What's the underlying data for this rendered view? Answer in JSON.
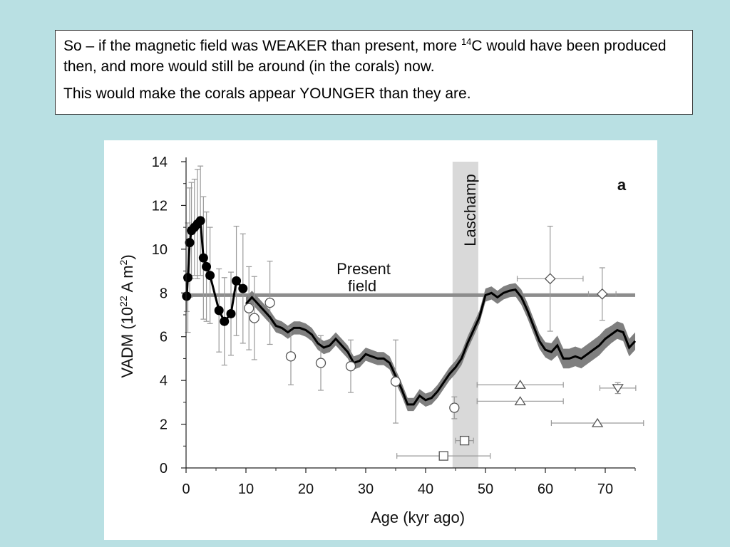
{
  "slide": {
    "line1_pre": "So – if the magnetic field was WEAKER than present, more ",
    "line1_sup": "14",
    "line1_post": "C would have been produced then, and more would still be around (in the corals) now.",
    "line2": "This would make the corals appear YOUNGER than they are."
  },
  "chart_data": {
    "type": "line",
    "panel_label": "a",
    "xlabel": "Age (kyr ago)",
    "ylabel_main": "VADM (10",
    "ylabel_exp1": "22",
    "ylabel_mid": " A m",
    "ylabel_exp2": "2",
    "ylabel_end": ")",
    "xlim": [
      0,
      75
    ],
    "ylim": [
      0,
      14
    ],
    "xticks": [
      "0",
      "10",
      "20",
      "30",
      "40",
      "50",
      "60",
      "70"
    ],
    "yticks": [
      "0",
      "2",
      "4",
      "6",
      "8",
      "10",
      "12",
      "14"
    ],
    "annotations": {
      "present_field_line1": "Present",
      "present_field_line2": "field",
      "laschamp": "Laschamp"
    },
    "present_field_value": 7.9,
    "laschamp_band": [
      44.5,
      48.8
    ],
    "composite_curve": {
      "x": [
        10,
        11,
        12,
        13,
        14,
        15,
        16,
        17,
        18,
        19,
        20,
        21,
        22,
        23,
        24,
        25,
        26,
        27,
        28,
        29,
        30,
        31,
        32,
        33,
        34,
        35,
        36,
        37,
        38,
        39,
        40,
        41,
        42,
        43,
        44,
        45,
        46,
        47,
        48,
        49,
        50,
        51,
        52,
        53,
        54,
        55,
        56,
        57,
        58,
        59,
        60,
        61,
        62,
        63,
        64,
        65,
        66,
        67,
        68,
        69,
        70,
        71,
        72,
        73,
        74,
        75
      ],
      "y": [
        7.5,
        7.8,
        7.5,
        7.2,
        6.9,
        6.5,
        6.4,
        6.2,
        6.4,
        6.4,
        6.3,
        6.1,
        5.7,
        5.5,
        5.6,
        5.9,
        5.6,
        5.3,
        4.8,
        4.9,
        5.2,
        5.1,
        5.0,
        5.0,
        4.8,
        4.2,
        3.6,
        2.9,
        2.9,
        3.3,
        3.1,
        3.2,
        3.5,
        3.9,
        4.3,
        4.6,
        5.0,
        5.7,
        6.3,
        6.9,
        7.9,
        8.0,
        7.8,
        8.0,
        8.1,
        8.15,
        7.8,
        7.2,
        6.5,
        5.8,
        5.4,
        5.3,
        5.6,
        5.0,
        5.0,
        5.1,
        5.0,
        5.2,
        5.4,
        5.6,
        5.9,
        6.1,
        6.3,
        6.2,
        5.5,
        5.8
      ],
      "band_halfwidth": [
        0.3,
        0.3,
        0.3,
        0.3,
        0.3,
        0.3,
        0.3,
        0.3,
        0.3,
        0.3,
        0.3,
        0.3,
        0.3,
        0.3,
        0.3,
        0.3,
        0.3,
        0.3,
        0.3,
        0.3,
        0.3,
        0.3,
        0.3,
        0.3,
        0.3,
        0.3,
        0.3,
        0.3,
        0.3,
        0.3,
        0.3,
        0.3,
        0.3,
        0.3,
        0.3,
        0.3,
        0.3,
        0.3,
        0.3,
        0.3,
        0.3,
        0.3,
        0.3,
        0.3,
        0.3,
        0.3,
        0.35,
        0.35,
        0.35,
        0.35,
        0.35,
        0.4,
        0.45,
        0.45,
        0.45,
        0.45,
        0.45,
        0.45,
        0.45,
        0.45,
        0.45,
        0.4,
        0.4,
        0.4,
        0.4,
        0.4
      ]
    },
    "holocene_points": {
      "x": [
        0.1,
        0.3,
        0.6,
        0.9,
        1.4,
        1.9,
        2.4,
        2.9,
        3.4,
        4.0,
        5.5,
        6.4,
        7.5,
        8.4,
        9.5
      ],
      "y": [
        7.85,
        8.7,
        10.3,
        10.85,
        11.0,
        11.15,
        11.3,
        9.6,
        9.2,
        8.8,
        7.2,
        6.7,
        7.05,
        8.55,
        8.2
      ],
      "err": [
        0.7,
        2.5,
        2.5,
        2.2,
        2.2,
        2.5,
        2.5,
        2.8,
        2.5,
        2.2,
        1.9,
        2.0,
        1.9,
        2.5,
        2.5
      ]
    },
    "open_circles": {
      "x": [
        10.5,
        11.4,
        14.0,
        17.5,
        22.5,
        27.5,
        35.0,
        44.8
      ],
      "y": [
        7.3,
        6.85,
        7.55,
        5.1,
        4.8,
        4.65,
        3.95,
        2.75
      ],
      "err": [
        1.9,
        1.9,
        1.9,
        1.3,
        1.25,
        1.2,
        1.9,
        0.5
      ]
    },
    "open_squares": {
      "x": [
        43.0,
        46.5
      ],
      "y": [
        0.55,
        1.25
      ],
      "xerr": [
        7.8,
        1.5
      ]
    },
    "open_diamonds": {
      "x": [
        60.8,
        69.5
      ],
      "y": [
        8.65,
        7.95
      ],
      "xerr": [
        5.5,
        2.3
      ],
      "yerr": [
        2.4,
        1.2
      ]
    },
    "triangles_up": {
      "x": [
        55.8,
        55.8,
        68.7
      ],
      "y": [
        3.8,
        3.05,
        2.05
      ],
      "xerr": [
        7.2,
        7.2,
        7.7
      ]
    },
    "triangles_down": {
      "x": [
        72.1
      ],
      "y": [
        3.65
      ],
      "xerr": [
        3.0
      ],
      "yerr": [
        0.25
      ]
    },
    "colors": {
      "band": "#7f7f7f",
      "laschamp": "#d9d9d9",
      "present_field": "#8c8c8c",
      "curve": "#000000",
      "errorbar": "#9a9a9a"
    }
  }
}
